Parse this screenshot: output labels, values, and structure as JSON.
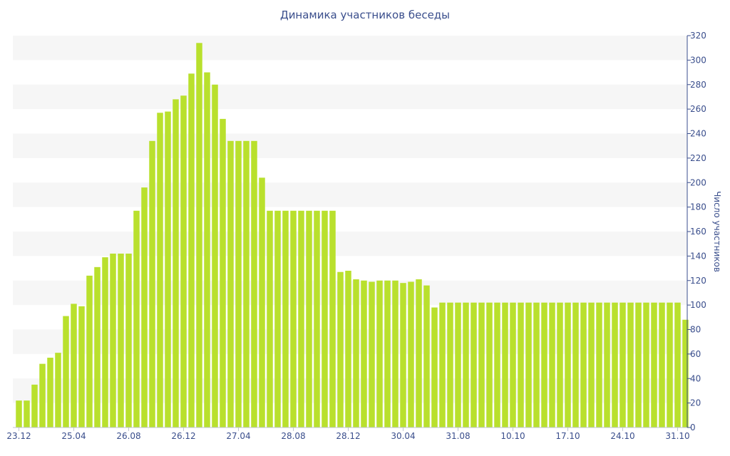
{
  "chart_data": {
    "type": "bar",
    "title": "Динамика участников беседы",
    "ylabel": "Число участников",
    "xlabel": "",
    "ylim": [
      0,
      320
    ],
    "y_ticks": [
      0,
      20,
      40,
      60,
      80,
      100,
      120,
      140,
      160,
      180,
      200,
      220,
      240,
      260,
      280,
      300,
      320
    ],
    "y_axis_side": "right",
    "grid": "alternating horizontal bands",
    "bar_color": "#b9e02d",
    "band_color": "#f6f6f6",
    "text_color": "#3a4e8c",
    "x_tick_labels": [
      {
        "label": "23.12",
        "index": 0
      },
      {
        "label": "25.04",
        "index": 7
      },
      {
        "label": "26.08",
        "index": 14
      },
      {
        "label": "26.12",
        "index": 21
      },
      {
        "label": "27.04",
        "index": 28
      },
      {
        "label": "28.08",
        "index": 35
      },
      {
        "label": "28.12",
        "index": 42
      },
      {
        "label": "30.04",
        "index": 49
      },
      {
        "label": "31.08",
        "index": 56
      },
      {
        "label": "10.10",
        "index": 63
      },
      {
        "label": "17.10",
        "index": 70
      },
      {
        "label": "24.10",
        "index": 77
      },
      {
        "label": "31.10",
        "index": 84
      }
    ],
    "values": [
      22,
      22,
      35,
      52,
      57,
      61,
      91,
      101,
      99,
      124,
      131,
      139,
      142,
      142,
      142,
      177,
      196,
      234,
      257,
      258,
      268,
      271,
      289,
      314,
      290,
      280,
      252,
      234,
      234,
      234,
      234,
      204,
      177,
      177,
      177,
      177,
      177,
      177,
      177,
      177,
      177,
      127,
      128,
      121,
      120,
      119,
      120,
      120,
      120,
      118,
      119,
      121,
      116,
      98,
      102,
      102,
      102,
      102,
      102,
      102,
      102,
      102,
      102,
      102,
      102,
      102,
      102,
      102,
      102,
      102,
      102,
      102,
      102,
      102,
      102,
      102,
      102,
      102,
      102,
      102,
      102,
      102,
      102,
      102,
      102,
      88
    ]
  }
}
